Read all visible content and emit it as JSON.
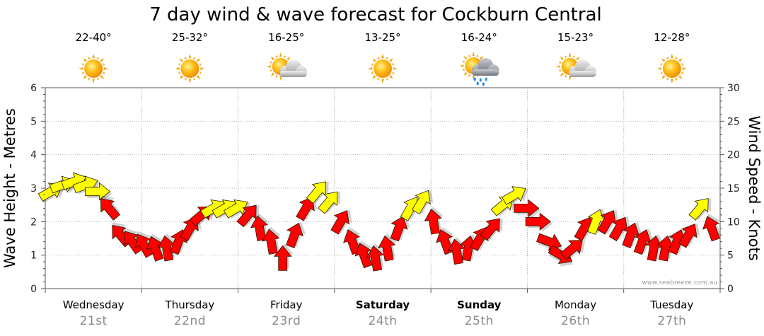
{
  "chart_data": {
    "type": "line",
    "title": "7 day wind & wave forecast for Cockburn Central",
    "ylabel_left": "Wave Height - Metres",
    "ylabel_right": "Wind Speed - Knots",
    "ylim_left": [
      0,
      6
    ],
    "ylim_right": [
      0,
      30
    ],
    "yticks_left": [
      "0",
      "1",
      "2",
      "3",
      "4",
      "5",
      "6"
    ],
    "yticks_right": [
      "0",
      "5",
      "10",
      "15",
      "20",
      "25",
      "30"
    ],
    "credit": "www.seabreeze.com.au",
    "days": [
      {
        "name": "Wednesday",
        "date": "21st",
        "temp": "22-40°",
        "icon": "sunny",
        "bold": false
      },
      {
        "name": "Thursday",
        "date": "22nd",
        "temp": "25-32°",
        "icon": "sunny",
        "bold": false
      },
      {
        "name": "Friday",
        "date": "23rd",
        "temp": "16-25°",
        "icon": "partly-cloudy",
        "bold": false
      },
      {
        "name": "Saturday",
        "date": "24th",
        "temp": "13-25°",
        "icon": "sunny",
        "bold": true
      },
      {
        "name": "Sunday",
        "date": "25th",
        "temp": "16-24°",
        "icon": "showers",
        "bold": true
      },
      {
        "name": "Monday",
        "date": "26th",
        "temp": "15-23°",
        "icon": "partly-cloudy",
        "bold": false
      },
      {
        "name": "Tuesday",
        "date": "27th",
        "temp": "12-28°",
        "icon": "sunny",
        "bold": false
      }
    ],
    "wind_series": {
      "name": "Wind Speed (knots)",
      "x_hours": [
        0,
        3,
        6,
        9,
        12,
        15,
        18,
        21,
        24,
        27,
        30,
        33,
        36,
        39,
        42,
        45,
        48,
        51,
        54,
        57,
        60,
        63,
        66,
        69,
        72,
        75,
        78,
        81,
        84,
        87,
        90,
        93,
        96,
        99,
        102,
        105,
        108,
        111,
        114,
        117,
        120,
        123,
        126,
        129,
        132,
        135,
        138,
        141,
        144,
        147,
        150,
        153,
        156,
        159,
        162,
        165,
        168,
        171
      ],
      "speed": [
        14.5,
        15.5,
        16,
        15.5,
        14.5,
        12,
        8,
        7,
        6.5,
        6,
        6,
        7,
        9,
        11,
        12,
        12,
        12,
        11,
        9,
        7,
        4.5,
        8,
        12,
        14.5,
        13,
        10,
        7,
        5,
        4.5,
        6,
        9,
        12,
        13,
        10,
        7,
        5.5,
        6,
        7.5,
        9,
        12.5,
        14,
        12,
        10,
        7,
        5,
        6,
        9,
        10,
        10,
        9,
        8,
        7,
        6,
        6,
        7,
        8,
        12,
        9
      ],
      "direction_deg": [
        240,
        250,
        250,
        250,
        270,
        140,
        140,
        145,
        150,
        160,
        170,
        200,
        210,
        230,
        240,
        240,
        240,
        220,
        170,
        170,
        180,
        200,
        210,
        220,
        220,
        210,
        160,
        160,
        170,
        170,
        200,
        210,
        210,
        170,
        160,
        170,
        190,
        210,
        220,
        230,
        240,
        270,
        270,
        290,
        300,
        230,
        210,
        200,
        210,
        210,
        200,
        200,
        190,
        190,
        200,
        210,
        220,
        160
      ],
      "colors": [
        "yellow",
        "yellow",
        "yellow",
        "yellow",
        "yellow",
        "red",
        "red",
        "red",
        "red",
        "red",
        "red",
        "red",
        "red",
        "red",
        "yellow",
        "yellow",
        "yellow",
        "red",
        "red",
        "red",
        "red",
        "red",
        "red",
        "yellow",
        "yellow",
        "red",
        "red",
        "red",
        "red",
        "red",
        "red",
        "yellow",
        "yellow",
        "red",
        "red",
        "red",
        "red",
        "red",
        "red",
        "yellow",
        "yellow",
        "red",
        "red",
        "red",
        "red",
        "red",
        "red",
        "yellow",
        "red",
        "red",
        "red",
        "red",
        "red",
        "red",
        "red",
        "red",
        "yellow",
        "red"
      ]
    }
  }
}
